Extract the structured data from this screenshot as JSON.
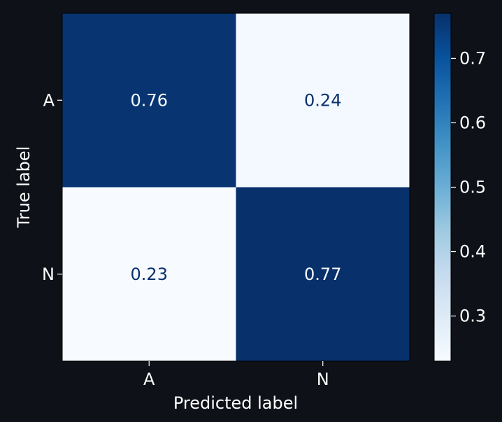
{
  "chart_data": {
    "type": "heatmap",
    "title": "",
    "xlabel": "Predicted label",
    "ylabel": "True label",
    "x_categories": [
      "A",
      "N"
    ],
    "y_categories": [
      "A",
      "N"
    ],
    "values": [
      [
        0.76,
        0.24
      ],
      [
        0.23,
        0.77
      ]
    ],
    "value_labels": [
      [
        "0.76",
        "0.24"
      ],
      [
        "0.23",
        "0.77"
      ]
    ],
    "colormap": "Blues",
    "color_range": [
      0.23,
      0.77
    ],
    "colorbar": {
      "ticks": [
        0.3,
        0.4,
        0.5,
        0.6,
        0.7
      ],
      "tick_labels": [
        "0.3",
        "0.4",
        "0.5",
        "0.6",
        "0.7"
      ]
    },
    "grid": false
  },
  "colors": {
    "background": "#0e1117",
    "text": "#ffffff",
    "cmap_low": "#f7fbff",
    "cmap_high": "#08306b",
    "text_on_light": "#08306b",
    "text_on_dark": "#f7fbff"
  }
}
